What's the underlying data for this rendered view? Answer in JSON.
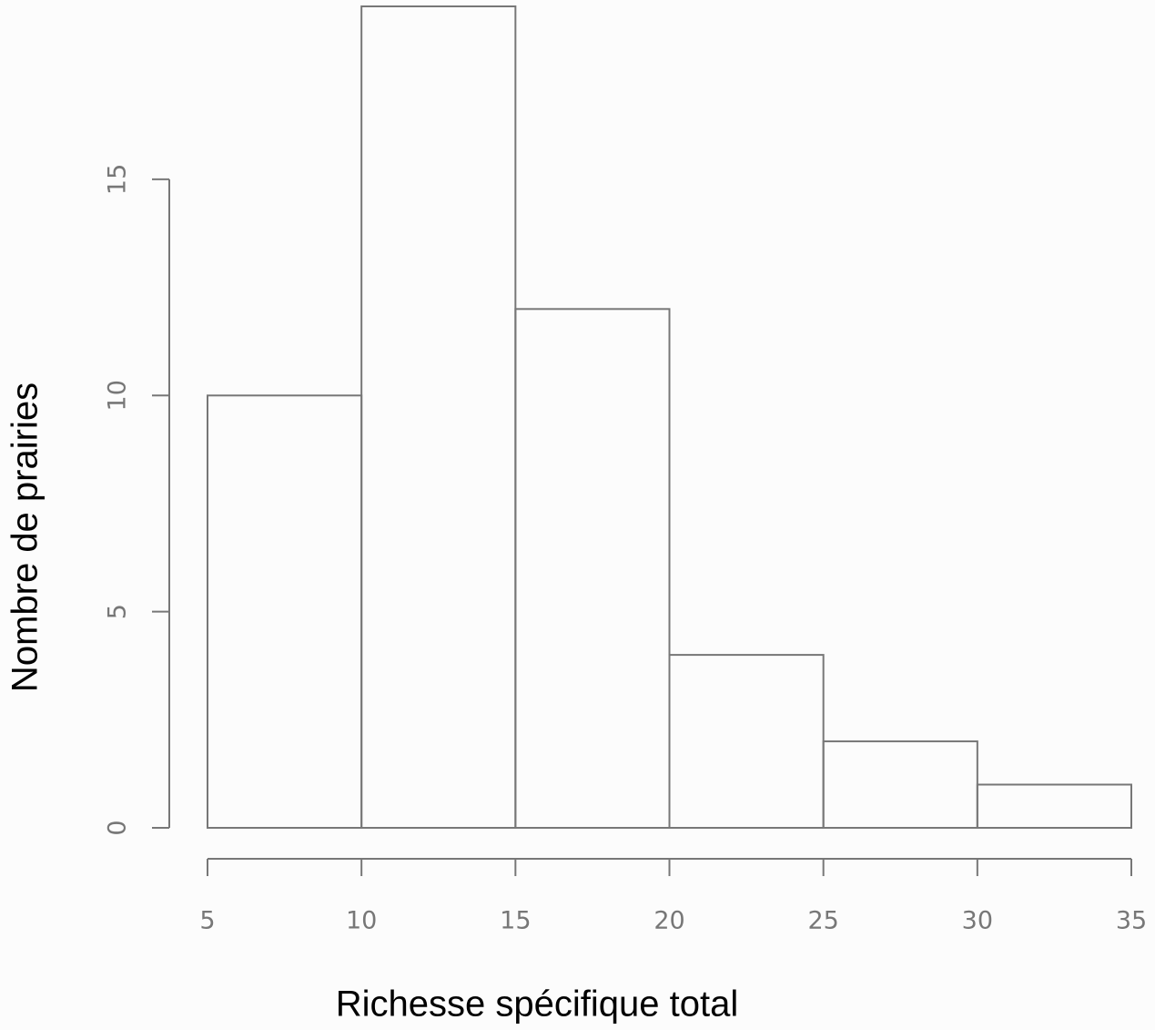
{
  "chart_data": {
    "type": "histogram",
    "x_label": "Richesse spécifique total",
    "y_label": "Nombre de prairies",
    "bins": [
      5,
      10,
      15,
      20,
      25,
      30,
      35
    ],
    "values": [
      10,
      19,
      12,
      4,
      2,
      1
    ],
    "color": "#777777",
    "xlim": [
      5,
      35
    ],
    "xticks": [
      5,
      10,
      15,
      20,
      25,
      30,
      35
    ],
    "ylim": [
      0,
      19
    ],
    "yticks": [
      0,
      5,
      10,
      15
    ]
  }
}
